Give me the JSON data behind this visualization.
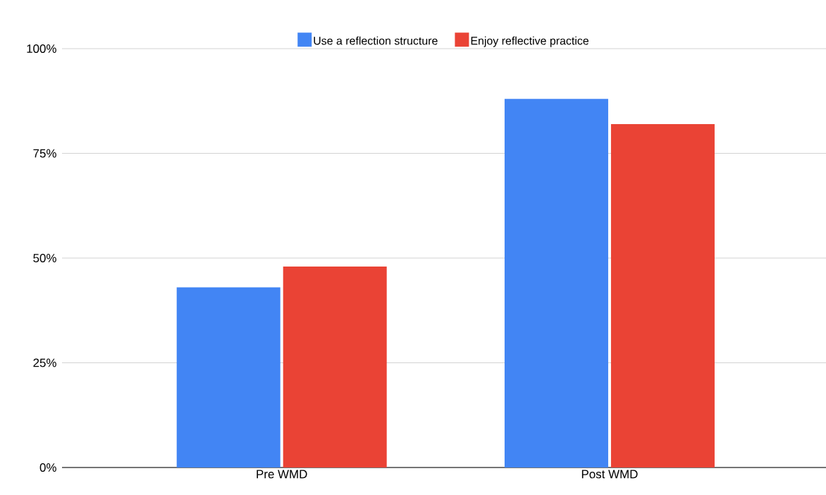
{
  "chart_data": {
    "type": "bar",
    "categories": [
      "Pre WMD",
      "Post WMD"
    ],
    "series": [
      {
        "name": "Use a reflection structure",
        "color": "#4285f4",
        "values": [
          43,
          88
        ]
      },
      {
        "name": "Enjoy reflective practice",
        "color": "#ea4335",
        "values": [
          48,
          82
        ]
      }
    ],
    "ylim": [
      0,
      100
    ],
    "yticks": [
      {
        "value": 0,
        "label": "0%"
      },
      {
        "value": 25,
        "label": "25%"
      },
      {
        "value": 50,
        "label": "50%"
      },
      {
        "value": 75,
        "label": "75%"
      },
      {
        "value": 100,
        "label": "100%"
      }
    ],
    "grid": "y",
    "legend": "top"
  }
}
